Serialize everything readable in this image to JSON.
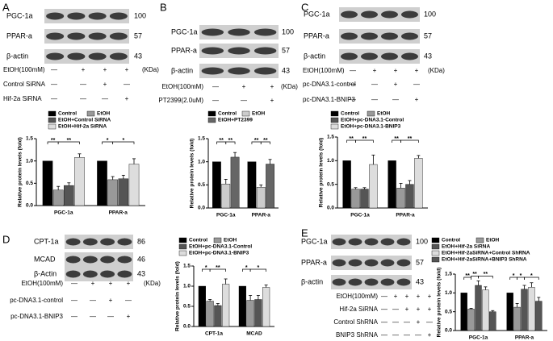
{
  "panels": [
    {
      "label": "A",
      "bands": [
        "PGC-1a",
        "PPAR-a",
        "β-actin"
      ],
      "sizes": [
        "100",
        "57",
        "43"
      ],
      "kda": "(KDa)",
      "conditions": [
        {
          "name": "EtOH(100mM)",
          "signs": [
            "—",
            "+",
            "+",
            "+"
          ]
        },
        {
          "name": "Control SiRNA",
          "signs": [
            "—",
            "—",
            "+",
            "—"
          ]
        },
        {
          "name": "Hif-2a SiRNA",
          "signs": [
            "—",
            "—",
            "—",
            "+"
          ]
        }
      ]
    },
    {
      "label": "B",
      "bands": [
        "PGC-1a",
        "PPAR-a",
        "β-actin"
      ],
      "sizes": [
        "100",
        "57",
        "43"
      ],
      "kda": "(KDa)",
      "conditions": [
        {
          "name": "EtOH(100mM)",
          "signs": [
            "—",
            "+",
            "+"
          ]
        },
        {
          "name": "PT2399(2.0uM)",
          "signs": [
            "—",
            "—",
            "+"
          ]
        }
      ]
    },
    {
      "label": "C",
      "bands": [
        "PGC-1a",
        "PPAR-a",
        "β-actin"
      ],
      "sizes": [
        "100",
        "57",
        "43"
      ],
      "kda": "(KDa)",
      "conditions": [
        {
          "name": "EtOH(100mM)",
          "signs": [
            "—",
            "+",
            "+",
            "+"
          ]
        },
        {
          "name": "pc-DNA3.1-control",
          "signs": [
            "—",
            "—",
            "+",
            "—"
          ]
        },
        {
          "name": "pc-DNA3.1-BNIP3",
          "signs": [
            "—",
            "—",
            "—",
            "+"
          ]
        }
      ]
    },
    {
      "label": "D",
      "bands": [
        "CPT-1a",
        "MCAD",
        "β-Actin"
      ],
      "sizes": [
        "86",
        "46",
        "43"
      ],
      "kda": "(KDa)",
      "conditions": [
        {
          "name": "EtOH(100mM)",
          "signs": [
            "—",
            "+",
            "+",
            "+"
          ]
        },
        {
          "name": "pc-DNA3.1-control",
          "signs": [
            "—",
            "—",
            "+",
            "—"
          ]
        },
        {
          "name": "pc-DNA3.1-BNIP3",
          "signs": [
            "—",
            "—",
            "—",
            "+"
          ]
        }
      ]
    },
    {
      "label": "E",
      "bands": [
        "PGC-1a",
        "PPAR-a",
        "β-actin"
      ],
      "sizes": [
        "100",
        "57",
        "43"
      ],
      "conditions": [
        {
          "name": "EtOH(100mM)",
          "signs": [
            "—",
            "+",
            "+",
            "+",
            "+"
          ]
        },
        {
          "name": "Hif-2a SiRNA",
          "signs": [
            "—",
            "—",
            "+",
            "+",
            "+"
          ]
        },
        {
          "name": "Control ShRNA",
          "signs": [
            "—",
            "—",
            "—",
            "+",
            "—"
          ]
        },
        {
          "name": "BNIP3 ShRNA",
          "signs": [
            "—",
            "—",
            "—",
            "—",
            "+"
          ]
        }
      ]
    }
  ],
  "chart_data": [
    {
      "type": "bar",
      "y_label": "Relative protein levels (fold)",
      "categories": [
        "PGC-1a",
        "PPAR-a"
      ],
      "ylim": [
        0,
        1.5
      ],
      "yticks": [
        {
          "value": 0,
          "label": "0.0"
        },
        {
          "value": 0.5,
          "label": "0.5"
        },
        {
          "value": 1,
          "label": "1.0"
        },
        {
          "value": 1.5,
          "label": "1.5"
        }
      ],
      "series": [
        {
          "name": "Control",
          "color": "#000000",
          "values": [
            1.0,
            1.0
          ],
          "errors": [
            0,
            0
          ]
        },
        {
          "name": "EtOH",
          "color": "#999999",
          "values": [
            0.35,
            0.58
          ],
          "errors": [
            0.08,
            0.07
          ]
        },
        {
          "name": "EtOH+Control SiRNA",
          "color": "#555555",
          "values": [
            0.45,
            0.6
          ],
          "errors": [
            0.06,
            0.08
          ]
        },
        {
          "name": "EtOH+Hif-2a SiRNA",
          "color": "#dddddd",
          "values": [
            1.08,
            0.93
          ],
          "errors": [
            0.08,
            0.12
          ]
        }
      ],
      "annotations": [
        [
          "**",
          "**"
        ],
        [
          "*",
          "*"
        ]
      ]
    },
    {
      "type": "bar",
      "y_label": "Relative protein levels (fold)",
      "categories": [
        "PGC-1a",
        "PPAR-a"
      ],
      "ylim": [
        0,
        1.5
      ],
      "yticks": [
        {
          "value": 0,
          "label": "0.0"
        },
        {
          "value": 0.5,
          "label": "0.5"
        },
        {
          "value": 1,
          "label": "1.0"
        },
        {
          "value": 1.5,
          "label": "1.5"
        }
      ],
      "series": [
        {
          "name": "Control",
          "color": "#000000",
          "values": [
            1.0,
            1.0
          ],
          "errors": [
            0,
            0
          ]
        },
        {
          "name": "EtOH",
          "color": "#cccccc",
          "values": [
            0.52,
            0.45
          ],
          "errors": [
            0.1,
            0.05
          ]
        },
        {
          "name": "EtOH+PT2399",
          "color": "#666666",
          "values": [
            1.1,
            0.95
          ],
          "errors": [
            0.1,
            0.1
          ]
        }
      ],
      "annotations": [
        [
          "**",
          "**"
        ],
        [
          "**",
          "**"
        ]
      ]
    },
    {
      "type": "bar",
      "y_label": "Relative protein levels (fold)",
      "categories": [
        "PGC-1a",
        "PPAR-a"
      ],
      "ylim": [
        0,
        1.5
      ],
      "yticks": [
        {
          "value": 0,
          "label": "0.0"
        },
        {
          "value": 0.5,
          "label": "0.5"
        },
        {
          "value": 1,
          "label": "1.0"
        },
        {
          "value": 1.5,
          "label": "1.5"
        }
      ],
      "series": [
        {
          "name": "Control",
          "color": "#000000",
          "values": [
            1.0,
            1.0
          ],
          "errors": [
            0,
            0
          ]
        },
        {
          "name": "EtOH",
          "color": "#999999",
          "values": [
            0.4,
            0.42
          ],
          "errors": [
            0.03,
            0.1
          ]
        },
        {
          "name": "EtOH+pc-DNA3.1-Control",
          "color": "#555555",
          "values": [
            0.4,
            0.5
          ],
          "errors": [
            0.03,
            0.08
          ]
        },
        {
          "name": "EtOH+pc-DNA3.1-BNIP3",
          "color": "#dddddd",
          "values": [
            0.92,
            1.05
          ],
          "errors": [
            0.2,
            0.06
          ]
        }
      ],
      "annotations": [
        [
          "**",
          "**"
        ],
        [
          "**",
          "**"
        ]
      ]
    },
    {
      "type": "bar",
      "y_label": "Relative protein levels (fold)",
      "categories": [
        "CPT-1a",
        "MCAD"
      ],
      "ylim": [
        0,
        1.5
      ],
      "yticks": [
        {
          "value": 0,
          "label": "0.0"
        },
        {
          "value": 0.5,
          "label": "0.5"
        },
        {
          "value": 1,
          "label": "1.0"
        },
        {
          "value": 1.5,
          "label": "1.5"
        }
      ],
      "series": [
        {
          "name": "Control",
          "color": "#000000",
          "values": [
            1.0,
            1.0
          ],
          "errors": [
            0,
            0
          ]
        },
        {
          "name": "EtOH",
          "color": "#999999",
          "values": [
            0.63,
            0.65
          ],
          "errors": [
            0.04,
            0.12
          ]
        },
        {
          "name": "EtOH+pc-DNA3.1-Control",
          "color": "#555555",
          "values": [
            0.52,
            0.67
          ],
          "errors": [
            0.05,
            0.1
          ]
        },
        {
          "name": "EtOH+pc-DNA3.1-BNIP3",
          "color": "#dddddd",
          "values": [
            1.05,
            0.97
          ],
          "errors": [
            0.13,
            0.06
          ]
        }
      ],
      "annotations": [
        [
          "*",
          "**"
        ],
        [
          "*",
          "*"
        ]
      ]
    },
    {
      "type": "bar",
      "y_label": "Relative protein levels (fold)",
      "categories": [
        "PGC-1a",
        "PPAR-a"
      ],
      "ylim": [
        0,
        1.5
      ],
      "yticks": [
        {
          "value": 0,
          "label": "0.0"
        },
        {
          "value": 0.5,
          "label": "0.5"
        },
        {
          "value": 1,
          "label": "1.0"
        },
        {
          "value": 1.5,
          "label": "1.5"
        }
      ],
      "series": [
        {
          "name": "Control",
          "color": "#000000",
          "values": [
            1.0,
            1.0
          ],
          "errors": [
            0,
            0
          ]
        },
        {
          "name": "EtOH",
          "color": "#999999",
          "values": [
            0.57,
            0.62
          ],
          "errors": [
            0.02,
            0.1
          ]
        },
        {
          "name": "EtOH+Hif-2a SiRNA",
          "color": "#555555",
          "values": [
            1.2,
            1.1
          ],
          "errors": [
            0.12,
            0.1
          ]
        },
        {
          "name": "EtOH+Hif-2aSiRNA+Control ShRNA",
          "color": "#dddddd",
          "values": [
            1.08,
            1.15
          ],
          "errors": [
            0.08,
            0.12
          ]
        },
        {
          "name": "EtOH+Hif-2aSiRNA+BNIP3 ShRNA",
          "color": "#555555",
          "values": [
            0.5,
            0.78
          ],
          "errors": [
            0.03,
            0.1
          ]
        }
      ],
      "annotations": [
        [
          "**",
          "**",
          "**"
        ],
        [
          "*",
          "*",
          "*"
        ]
      ]
    }
  ]
}
